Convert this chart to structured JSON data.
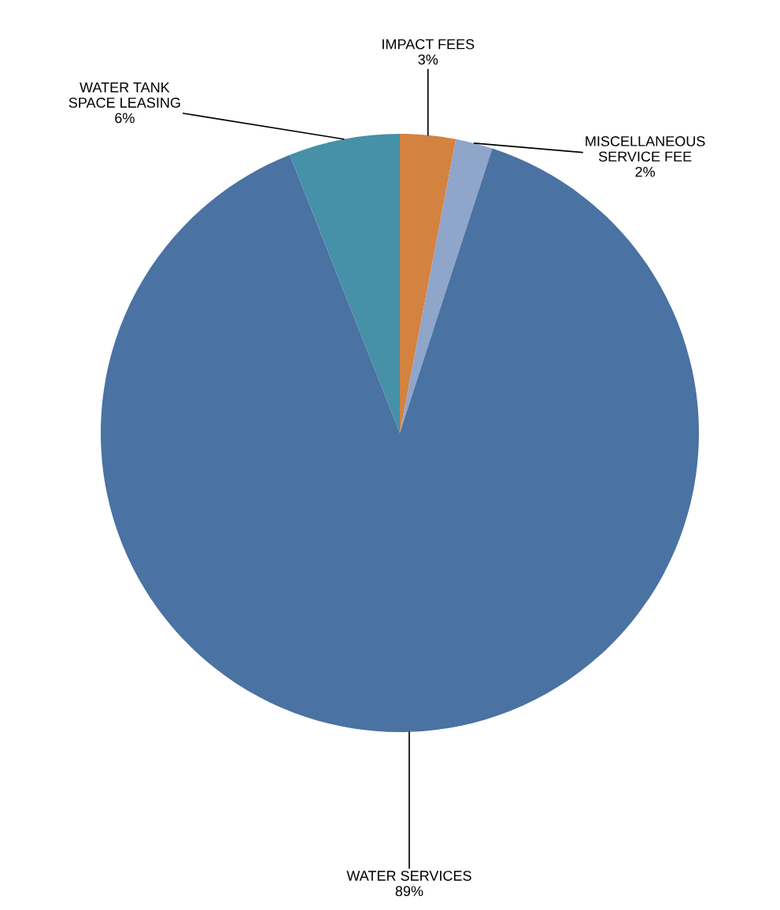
{
  "chart_data": {
    "type": "pie",
    "categories": [
      "IMPACT FEES",
      "MISCELLANEOUS SERVICE FEE",
      "WATER SERVICES",
      "WATER TANK SPACE LEASING"
    ],
    "values": [
      3,
      2,
      89,
      6
    ],
    "value_labels": [
      "3%",
      "2%",
      "89%",
      "6%"
    ],
    "colors": [
      "#d38240",
      "#8fa5c9",
      "#4a72a2",
      "#4690a8"
    ]
  }
}
